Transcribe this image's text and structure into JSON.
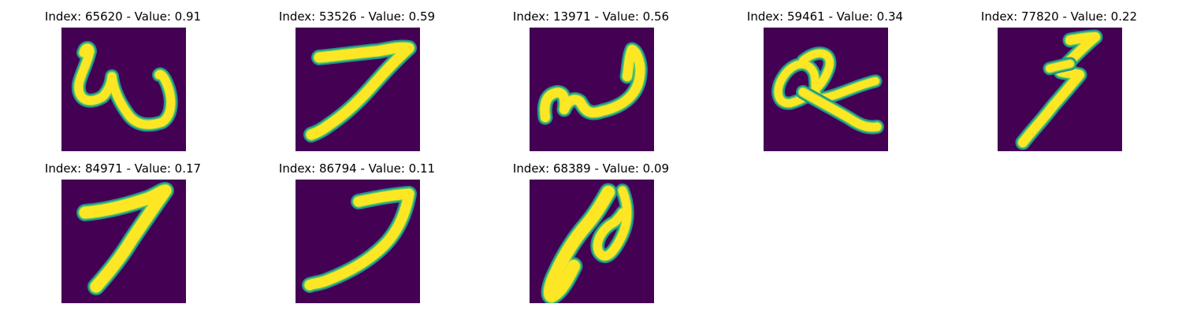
{
  "figure": {
    "colors": {
      "background": "#440154",
      "edge": "#21918c",
      "mid": "#5ec962",
      "stroke": "#fde725",
      "page": "#ffffff",
      "text": "#000000"
    },
    "panels": [
      {
        "title": "Index: 65620 - Value: 0.91",
        "index": "65620",
        "value": "0.91",
        "glyph": "w-curl"
      },
      {
        "title": "Index: 53526 - Value: 0.59",
        "index": "53526",
        "value": "0.59",
        "glyph": "seven"
      },
      {
        "title": "Index: 13971 - Value: 0.56",
        "index": "13971",
        "value": "0.56",
        "glyph": "w-low"
      },
      {
        "title": "Index: 59461 - Value: 0.34",
        "index": "59461",
        "value": "0.34",
        "glyph": "loop-cross"
      },
      {
        "title": "Index: 77820 - Value: 0.22",
        "index": "77820",
        "value": "0.22",
        "glyph": "five-slanted"
      },
      {
        "title": "Index: 84971 - Value: 0.17",
        "index": "84971",
        "value": "0.17",
        "glyph": "seven-thick"
      },
      {
        "title": "Index: 86794 - Value: 0.11",
        "index": "86794",
        "value": "0.11",
        "glyph": "seven-long"
      },
      {
        "title": "Index: 68389 - Value: 0.09",
        "index": "68389",
        "value": "0.09",
        "glyph": "p-loop"
      }
    ]
  }
}
